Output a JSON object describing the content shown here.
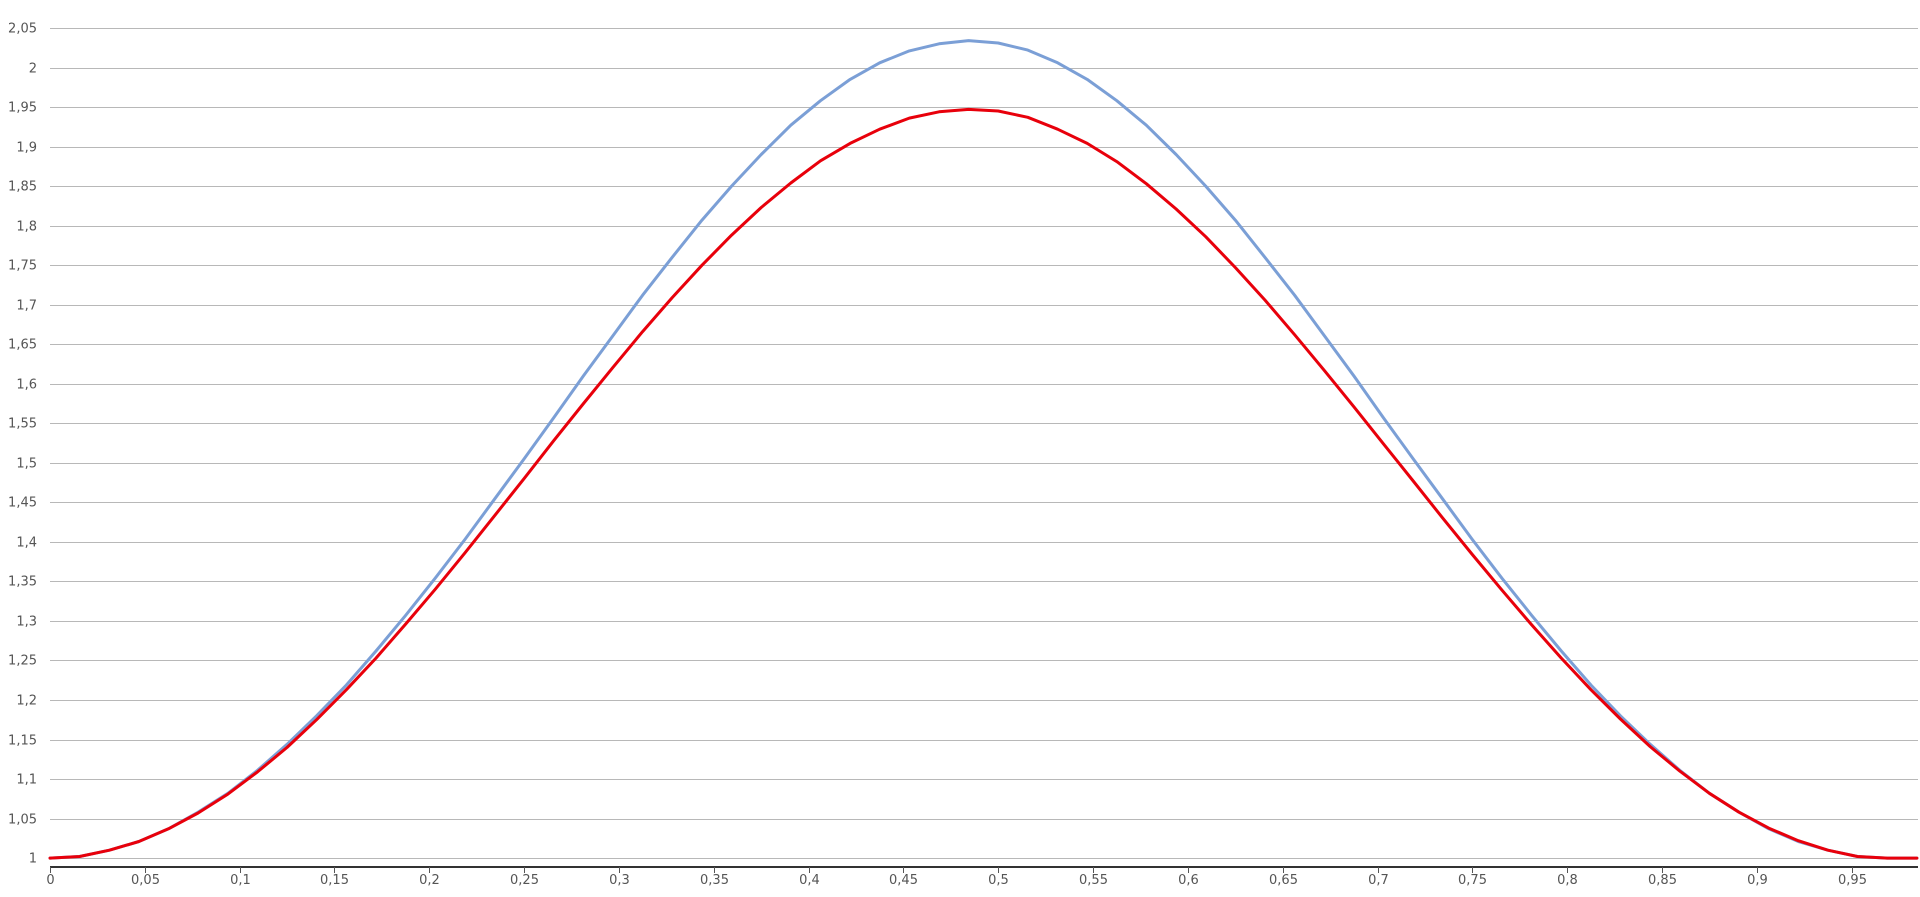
{
  "chart_data": {
    "type": "line",
    "title": "",
    "xlabel": "",
    "ylabel": "",
    "grid": true,
    "legend": "none",
    "xlim": [
      0,
      0.985
    ],
    "ylim": [
      0.99,
      2.05
    ],
    "x_ticks": [
      0,
      0.05,
      0.1,
      0.15,
      0.2,
      0.25,
      0.3,
      0.35,
      0.4,
      0.45,
      0.5,
      0.55,
      0.6,
      0.65,
      0.7,
      0.75,
      0.8,
      0.85,
      0.9,
      0.95
    ],
    "x_tick_labels": [
      "0",
      "0,05",
      "0,1",
      "0,15",
      "0,2",
      "0,25",
      "0,3",
      "0,35",
      "0,4",
      "0,45",
      "0,5",
      "0,55",
      "0,6",
      "0,65",
      "0,7",
      "0,75",
      "0,8",
      "0,85",
      "0,9",
      "0,95"
    ],
    "y_ticks": [
      1,
      1.05,
      1.1,
      1.15,
      1.2,
      1.25,
      1.3,
      1.35,
      1.4,
      1.45,
      1.5,
      1.55,
      1.6,
      1.65,
      1.7,
      1.75,
      1.8,
      1.85,
      1.9,
      1.95,
      2,
      2.05
    ],
    "y_tick_labels": [
      "1",
      "1,05",
      "1,1",
      "1,15",
      "1,2",
      "1,25",
      "1,3",
      "1,35",
      "1,4",
      "1,45",
      "1,5",
      "1,55",
      "1,6",
      "1,65",
      "1,7",
      "1,75",
      "1,8",
      "1,85",
      "1,9",
      "1,95",
      "2",
      "2,05"
    ],
    "x": [
      0,
      0.0156,
      0.0313,
      0.0469,
      0.0625,
      0.0781,
      0.0938,
      0.1094,
      0.125,
      0.1406,
      0.1563,
      0.1719,
      0.1875,
      0.2031,
      0.2188,
      0.2344,
      0.25,
      0.2656,
      0.2813,
      0.2969,
      0.3125,
      0.3281,
      0.3438,
      0.3594,
      0.375,
      0.3906,
      0.4063,
      0.4219,
      0.4375,
      0.4531,
      0.4688,
      0.4844,
      0.5,
      0.5156,
      0.5313,
      0.5469,
      0.5625,
      0.5781,
      0.5938,
      0.6094,
      0.625,
      0.6406,
      0.6563,
      0.6719,
      0.6875,
      0.7031,
      0.7188,
      0.7344,
      0.75,
      0.7656,
      0.7813,
      0.7969,
      0.8125,
      0.8281,
      0.8438,
      0.8594,
      0.875,
      0.8906,
      0.9063,
      0.9219,
      0.9375,
      0.9531,
      0.9688,
      0.9844
    ],
    "series": [
      {
        "color": "#7b9fd6",
        "values": [
          1,
          1.002,
          1.01,
          1.021,
          1.037,
          1.058,
          1.082,
          1.111,
          1.144,
          1.18,
          1.219,
          1.262,
          1.307,
          1.354,
          1.403,
          1.454,
          1.505,
          1.557,
          1.61,
          1.661,
          1.712,
          1.76,
          1.807,
          1.85,
          1.89,
          1.927,
          1.958,
          1.985,
          2.006,
          2.021,
          2.03,
          2.034,
          2.031,
          2.022,
          2.006,
          1.985,
          1.958,
          1.927,
          1.89,
          1.85,
          1.807,
          1.76,
          1.712,
          1.661,
          1.61,
          1.557,
          1.505,
          1.454,
          1.403,
          1.354,
          1.307,
          1.262,
          1.219,
          1.18,
          1.144,
          1.111,
          1.082,
          1.058,
          1.037,
          1.021,
          1.01,
          1.002,
          1.0,
          1.0
        ]
      },
      {
        "color": "#e8000b",
        "values": [
          1,
          1.002,
          1.01,
          1.021,
          1.037,
          1.057,
          1.081,
          1.109,
          1.14,
          1.175,
          1.213,
          1.253,
          1.296,
          1.34,
          1.386,
          1.433,
          1.48,
          1.528,
          1.575,
          1.621,
          1.666,
          1.709,
          1.75,
          1.788,
          1.823,
          1.854,
          1.882,
          1.904,
          1.922,
          1.936,
          1.944,
          1.947,
          1.945,
          1.937,
          1.922,
          1.904,
          1.881,
          1.853,
          1.821,
          1.786,
          1.747,
          1.706,
          1.662,
          1.617,
          1.571,
          1.524,
          1.477,
          1.43,
          1.384,
          1.339,
          1.295,
          1.253,
          1.213,
          1.176,
          1.141,
          1.11,
          1.082,
          1.058,
          1.038,
          1.022,
          1.01,
          1.002,
          1.0,
          1.0
        ]
      }
    ]
  }
}
